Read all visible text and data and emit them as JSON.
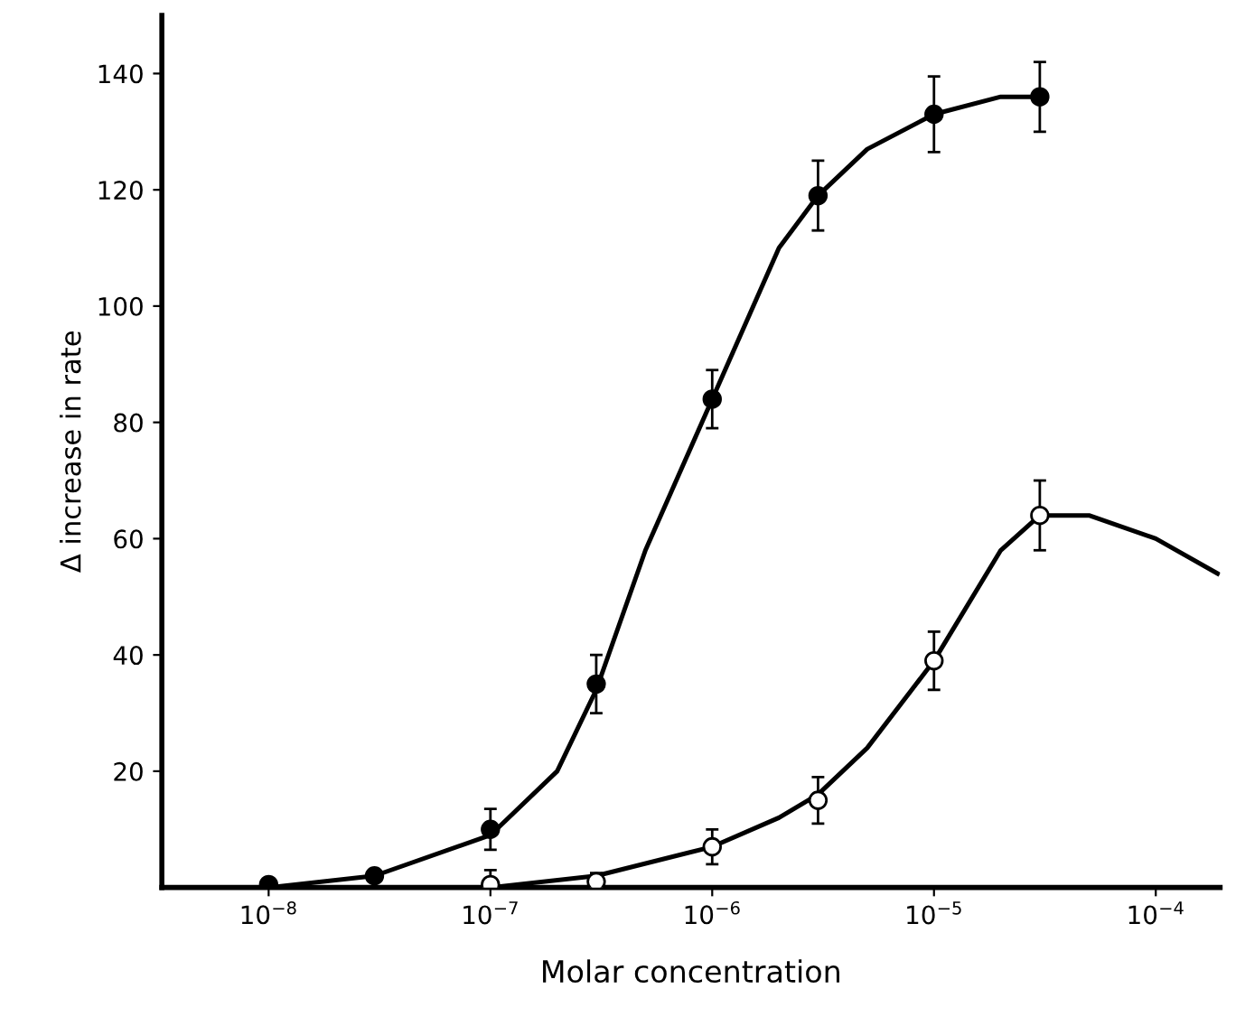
{
  "chart_data": {
    "type": "scatter",
    "xlabel": "Molar concentration",
    "ylabel": "Δ increase in rate",
    "log": "x",
    "grid": false,
    "legend": false,
    "xlim": [
      3.3e-09,
      0.000195
    ],
    "ylim": [
      0,
      150
    ],
    "xticks": [
      {
        "value": 1e-08,
        "label": "10$^{−8}$"
      },
      {
        "value": 1e-07,
        "label": "10$^{−7}$"
      },
      {
        "value": 1e-06,
        "label": "10$^{−6}$"
      },
      {
        "value": 1e-05,
        "label": "10$^{−5}$"
      },
      {
        "value": 0.0001,
        "label": "10$^{−4}$"
      }
    ],
    "yticks": [
      20,
      40,
      60,
      80,
      100,
      120,
      140
    ],
    "series": [
      {
        "type": "line",
        "color": "#000000",
        "marker": "none",
        "line_style": "solid",
        "x": [
          1e-08,
          3e-08,
          1e-07,
          2e-07,
          3e-07,
          5e-07,
          1e-06,
          2e-06,
          3e-06,
          5e-06,
          1e-05,
          2e-05,
          3e-05
        ],
        "values": [
          0,
          2,
          9,
          20,
          34,
          58,
          84,
          110,
          119,
          127,
          133,
          136,
          136
        ]
      },
      {
        "type": "line",
        "color": "#000000",
        "marker": "none",
        "line_style": "solid",
        "x": [
          1e-07,
          3e-07,
          1e-06,
          2e-06,
          3e-06,
          5e-06,
          1e-05,
          2e-05,
          3e-05,
          5e-05,
          0.0001,
          0.00019
        ],
        "values": [
          0,
          2,
          7,
          12,
          16,
          24,
          39,
          58,
          64,
          64,
          60,
          54
        ]
      },
      {
        "color": "#000000",
        "marker": "circle",
        "x": [
          1e-08,
          3e-08,
          1e-07,
          3e-07,
          1e-06,
          3e-06,
          1e-05,
          3e-05
        ],
        "values": [
          0.5,
          2,
          10,
          35,
          84,
          119,
          133,
          136
        ],
        "errors": [
          null,
          null,
          3.5,
          5,
          5,
          6,
          6.5,
          6
        ]
      },
      {
        "color": "#ffffff",
        "marker": "circle",
        "x": [
          1e-07,
          3e-07,
          1e-06,
          3e-06,
          1e-05,
          3e-05
        ],
        "values": [
          0.5,
          1,
          7,
          15,
          39,
          64
        ],
        "errors": [
          2.5,
          1.5,
          3,
          4,
          5,
          6
        ]
      }
    ]
  }
}
